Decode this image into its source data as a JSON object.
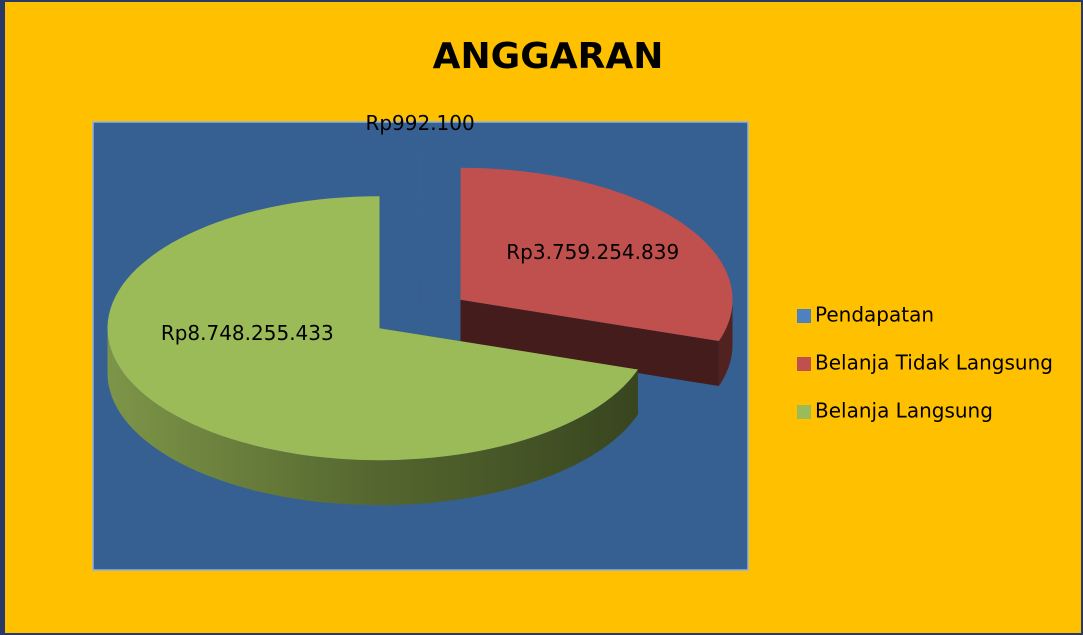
{
  "chart_data": {
    "type": "pie3d",
    "title": "ANGGARAN",
    "categories": [
      "Pendapatan",
      "Belanja Tidak Langsung",
      "Belanja Langsung"
    ],
    "values": [
      992100,
      3759254839,
      8748255433
    ],
    "value_labels": [
      "Rp992.100",
      "Rp3.759.254.839",
      "Rp8.748.255.433"
    ],
    "colors": [
      "#4f81bd",
      "#c0504d",
      "#9bbb59"
    ],
    "legend": "right"
  }
}
